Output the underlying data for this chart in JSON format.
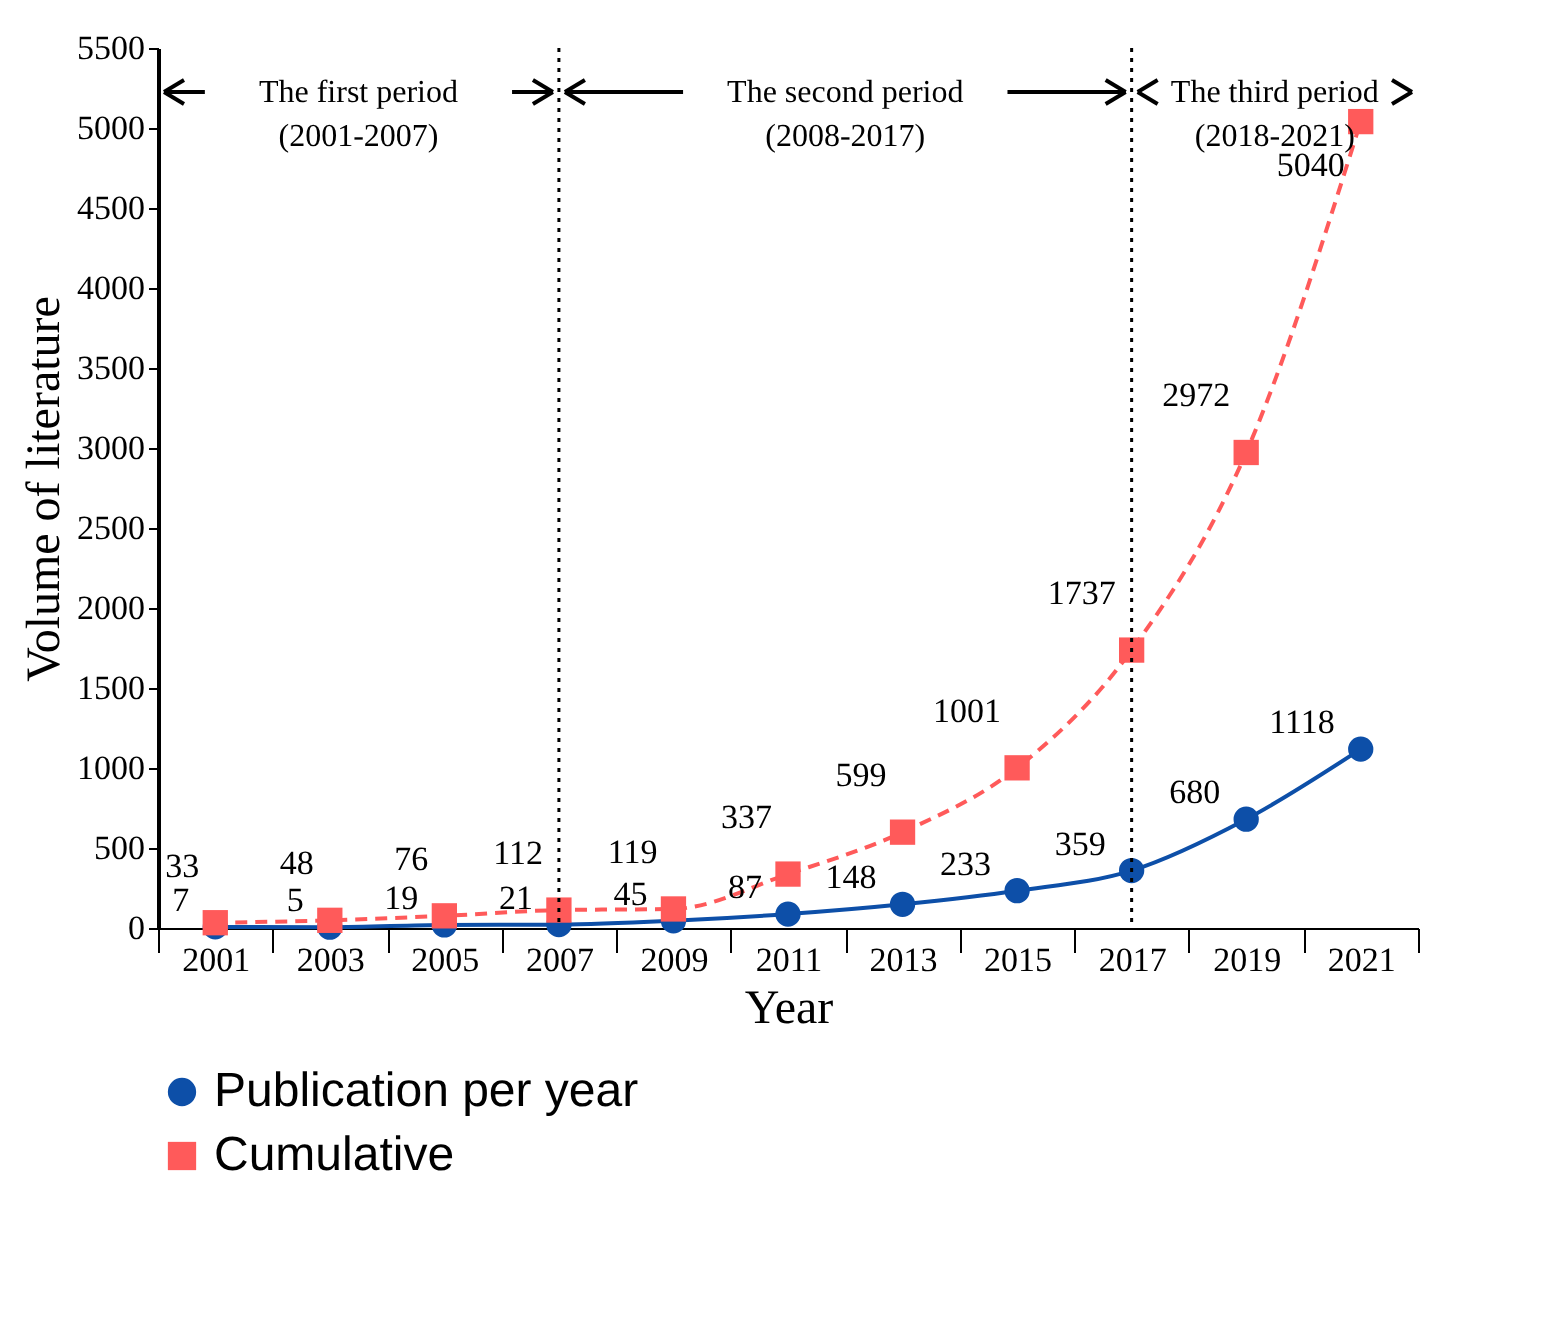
{
  "chart_data": {
    "type": "line",
    "xlabel": "Year",
    "ylabel": "Volume of literature",
    "categories": [
      "2001",
      "2003",
      "2005",
      "2007",
      "2009",
      "2011",
      "2013",
      "2015",
      "2017",
      "2019",
      "2021"
    ],
    "series": [
      {
        "name": "Publication per year",
        "color": "#0d4fa8",
        "marker": "circle",
        "line_style": "solid",
        "values": [
          7,
          5,
          19,
          21,
          45,
          87,
          148,
          233,
          359,
          680,
          1118
        ]
      },
      {
        "name": "Cumulative",
        "color": "#ff5a5a",
        "marker": "square",
        "line_style": "dashed",
        "values": [
          33,
          48,
          76,
          112,
          119,
          337,
          599,
          1001,
          1737,
          2972,
          5040
        ]
      }
    ],
    "ylim": [
      0,
      5500
    ],
    "yticks": [
      0,
      500,
      1000,
      1500,
      2000,
      2500,
      3000,
      3500,
      4000,
      4500,
      5000,
      5500
    ],
    "ref_lines": [
      {
        "axis": "x",
        "value": "2007",
        "line_style": "dotted",
        "color": "#000000"
      },
      {
        "axis": "x",
        "value": "2017",
        "line_style": "dotted",
        "color": "#000000"
      }
    ],
    "annotations": [
      "The first period\n(2001-2007)",
      "The second period\n(2008-2017)",
      "The third period\n(2018-2021)"
    ],
    "data_labels": true,
    "grid": false,
    "legend": "bottom left"
  }
}
